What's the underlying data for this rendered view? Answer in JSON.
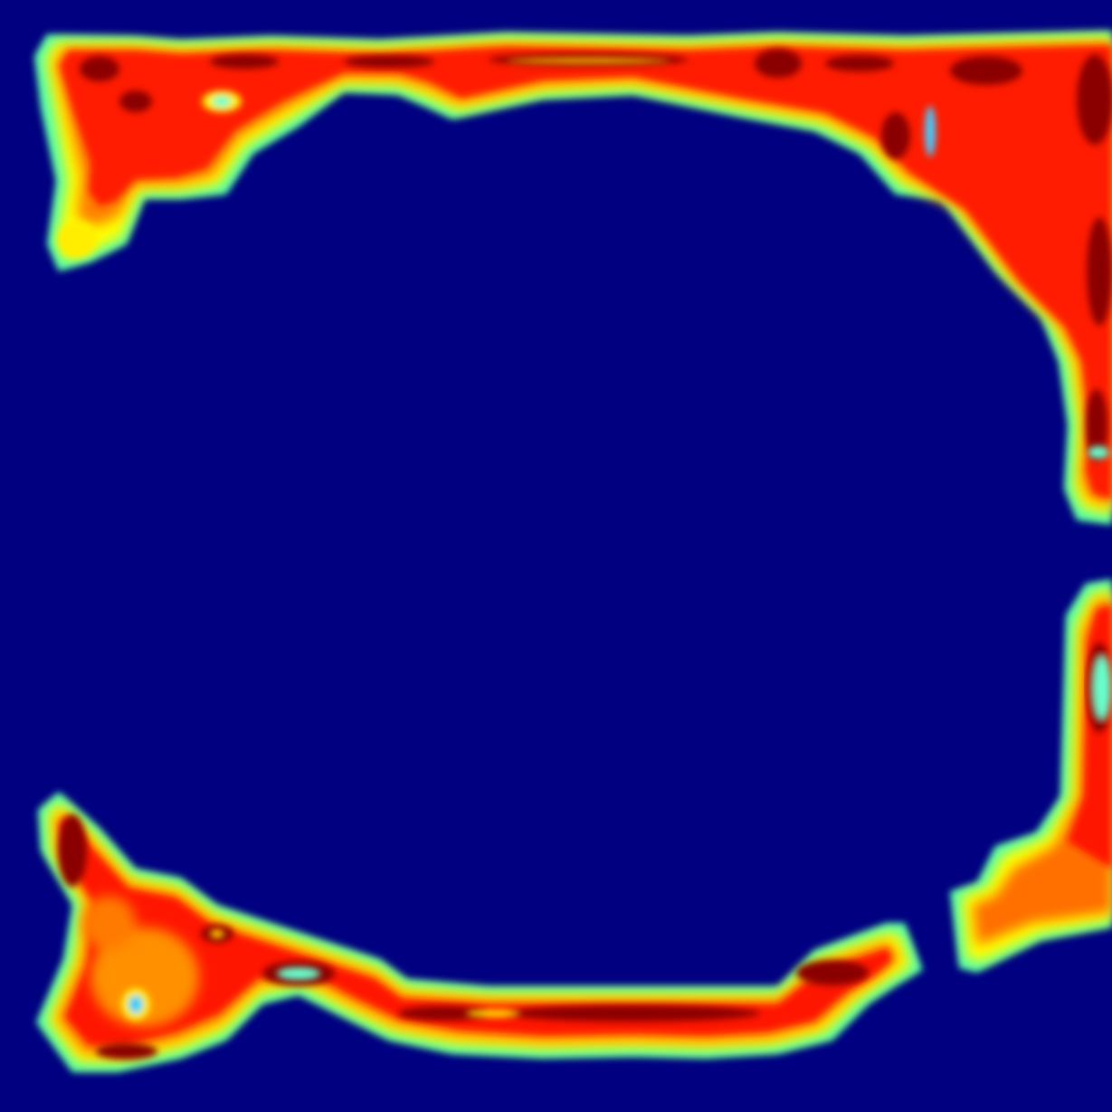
{
  "image": {
    "kind": "heatmap",
    "colormap": "jet",
    "colors": {
      "background": "#000080",
      "low": "#00007f",
      "cyan": "#55ffaa",
      "yellow": "#ffff00",
      "orange": "#ff8000",
      "red": "#ff0000",
      "dark_red": "#800000"
    }
  }
}
